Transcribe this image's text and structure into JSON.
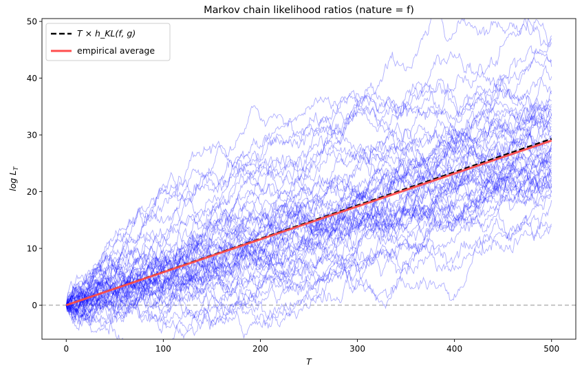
{
  "chart_data": {
    "type": "line",
    "title": "Markov chain likelihood ratios (nature = f)",
    "xlabel": "T",
    "ylabel": "log L_T",
    "xlim": [
      -25,
      525
    ],
    "ylim": [
      -6,
      50.5
    ],
    "xticks": [
      0,
      100,
      200,
      300,
      400,
      500
    ],
    "yticks": [
      0,
      10,
      20,
      30,
      40,
      50
    ],
    "grid": false,
    "legend_position": "top-left",
    "legend": [
      {
        "label": "T × h_KL(f, g)",
        "style": "dashed",
        "color": "#000000"
      },
      {
        "label": "empirical average",
        "style": "solid",
        "color": "#ff4d4d"
      }
    ],
    "series": [
      {
        "name": "T × h_KL(f, g)",
        "kind": "theoretical",
        "color": "#000000",
        "x": [
          0,
          500
        ],
        "y": [
          0,
          29.3
        ]
      },
      {
        "name": "empirical average",
        "kind": "empirical",
        "color": "#ff4d4d",
        "x": [
          0,
          500
        ],
        "y": [
          0,
          29.0
        ]
      }
    ],
    "simulated_paths": {
      "count": 50,
      "length": 500,
      "color": "#0000ff",
      "final_values": [
        47.5,
        47.0,
        46.3,
        43.2,
        42.0,
        40.3,
        37.8,
        37.2,
        36.0,
        35.4,
        35.0,
        34.3,
        33.8,
        33.3,
        32.8,
        32.4,
        31.9,
        31.4,
        30.9,
        30.5,
        30.0,
        29.6,
        29.1,
        28.7,
        28.3,
        27.8,
        27.4,
        27.0,
        26.6,
        26.2,
        25.8,
        25.4,
        25.0,
        24.6,
        24.2,
        23.8,
        23.4,
        23.0,
        22.6,
        22.2,
        21.8,
        21.4,
        21.0,
        20.6,
        20.2,
        19.8,
        19.2,
        18.5,
        14.3,
        14.0
      ],
      "zero_line": 0
    }
  }
}
